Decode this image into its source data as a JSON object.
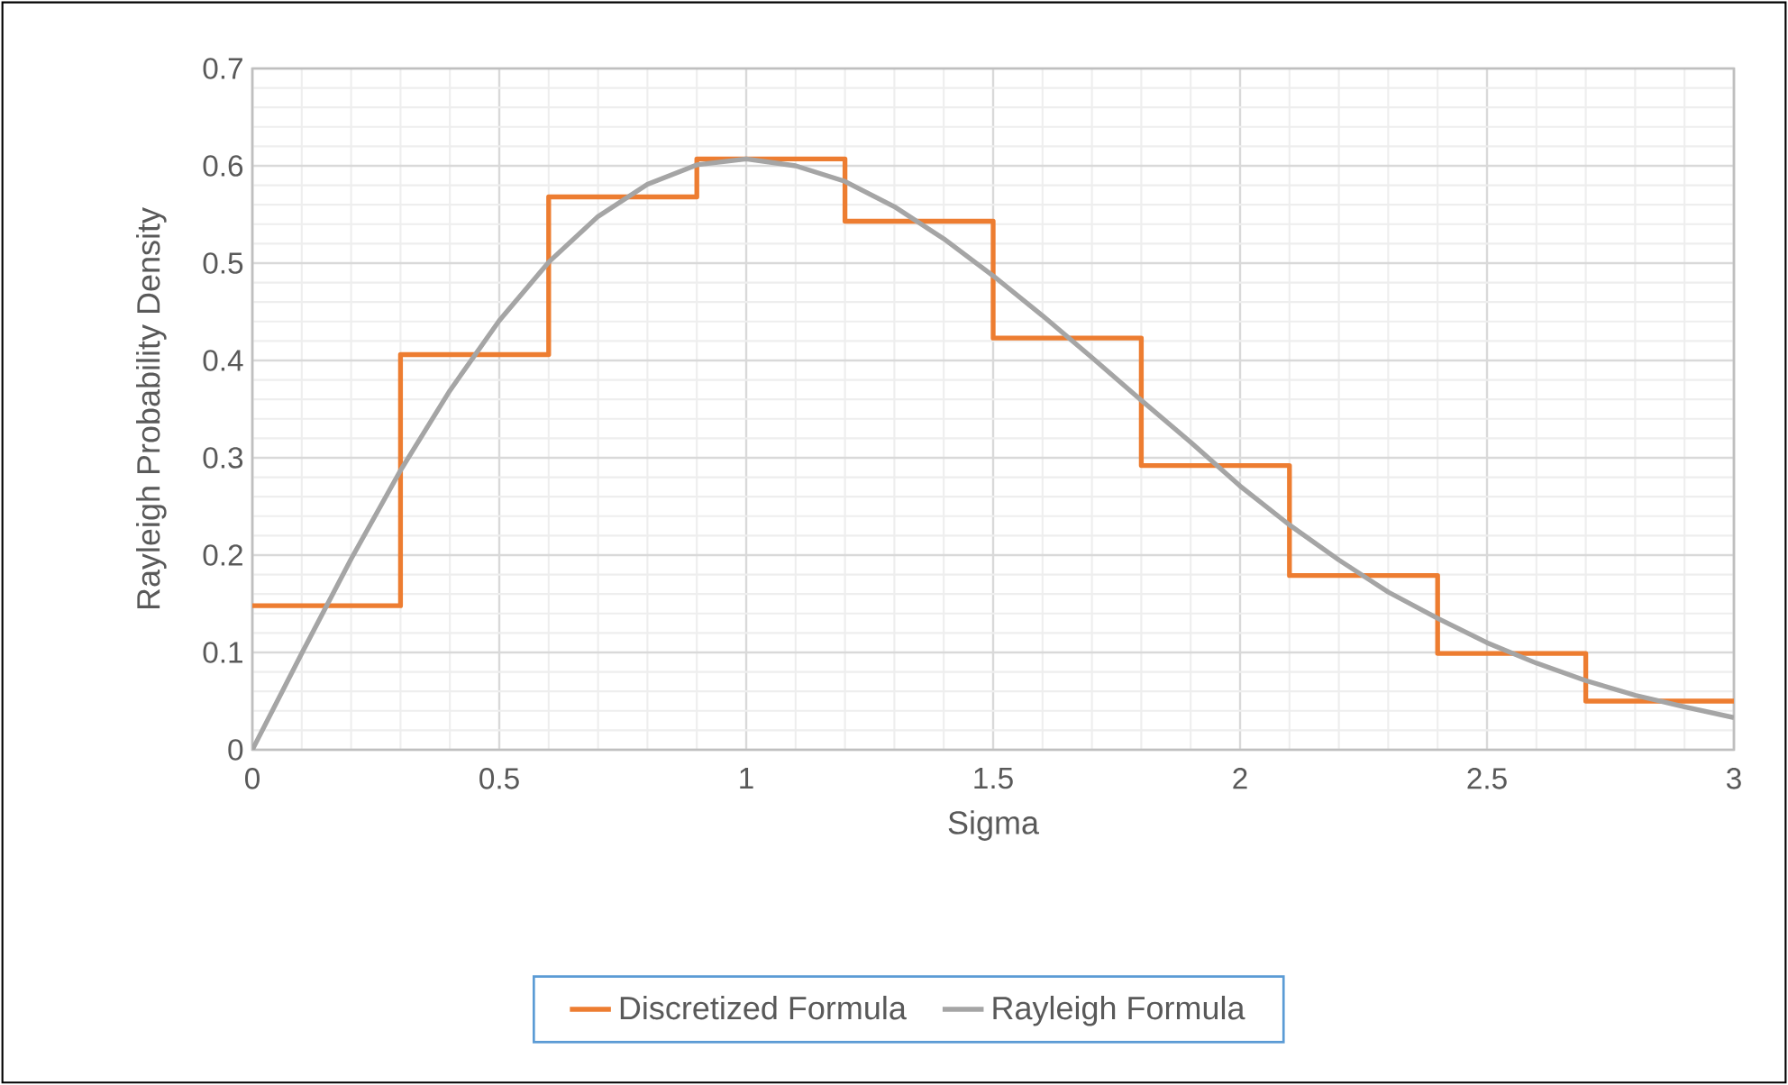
{
  "chart_data": {
    "type": "line",
    "xlabel": "Sigma",
    "ylabel": "Rayleigh Probability Density",
    "series": [
      {
        "name": "Discretized Formula",
        "type": "step",
        "color": "#ed7d31",
        "x": [
          0,
          0.3,
          0.6,
          0.9,
          1.2,
          1.5,
          1.8,
          2.1,
          2.4,
          2.7,
          3.0
        ],
        "values": [
          0.148,
          0.406,
          0.568,
          0.607,
          0.543,
          0.423,
          0.292,
          0.179,
          0.099,
          0.05,
          0.05
        ]
      },
      {
        "name": "Rayleigh Formula",
        "color": "#a5a5a5",
        "x": [
          0,
          0.1,
          0.2,
          0.3,
          0.4,
          0.5,
          0.6,
          0.7,
          0.8,
          0.9,
          1.0,
          1.1,
          1.2,
          1.3,
          1.4,
          1.5,
          1.6,
          1.7,
          1.8,
          1.9,
          2.0,
          2.1,
          2.2,
          2.3,
          2.4,
          2.5,
          2.6,
          2.7,
          2.8,
          2.9,
          3.0
        ],
        "values": [
          0,
          0.099,
          0.196,
          0.287,
          0.369,
          0.441,
          0.501,
          0.548,
          0.581,
          0.601,
          0.607,
          0.6,
          0.584,
          0.558,
          0.525,
          0.487,
          0.446,
          0.403,
          0.359,
          0.316,
          0.271,
          0.231,
          0.195,
          0.162,
          0.135,
          0.11,
          0.089,
          0.071,
          0.056,
          0.044,
          0.033
        ]
      }
    ],
    "xlim": [
      0,
      3
    ],
    "ylim": [
      0,
      0.7
    ],
    "xticks": [
      0,
      0.5,
      1,
      1.5,
      2,
      2.5,
      3
    ],
    "yticks": [
      0,
      0.1,
      0.2,
      0.3,
      0.4,
      0.5,
      0.6,
      0.7
    ],
    "grid": true,
    "legend": "bottom"
  }
}
